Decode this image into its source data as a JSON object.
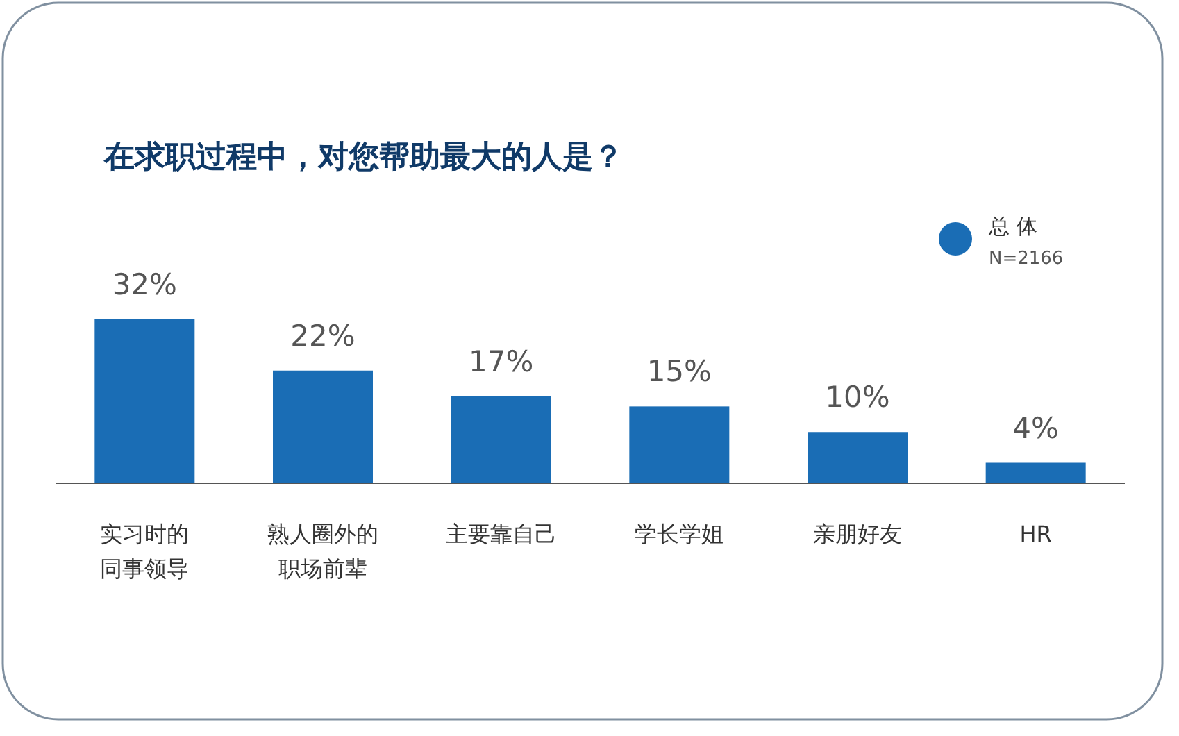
{
  "chart_data": {
    "type": "bar",
    "title": "在求职过程中，对您帮助最大的人是？",
    "categories": [
      "实习时的同事领导",
      "熟人圈外的职场前辈",
      "主要靠自己",
      "学长学姐",
      "亲朋好友",
      "HR"
    ],
    "series": [
      {
        "name": "总 体",
        "color": "#1a6db5",
        "values": [
          32,
          22,
          17,
          15,
          10,
          4
        ],
        "value_labels": [
          "32%",
          "22%",
          "17%",
          "15%",
          "10%",
          "4%"
        ]
      }
    ],
    "legend": "top right",
    "annotations": [
      "N=2166"
    ]
  }
}
